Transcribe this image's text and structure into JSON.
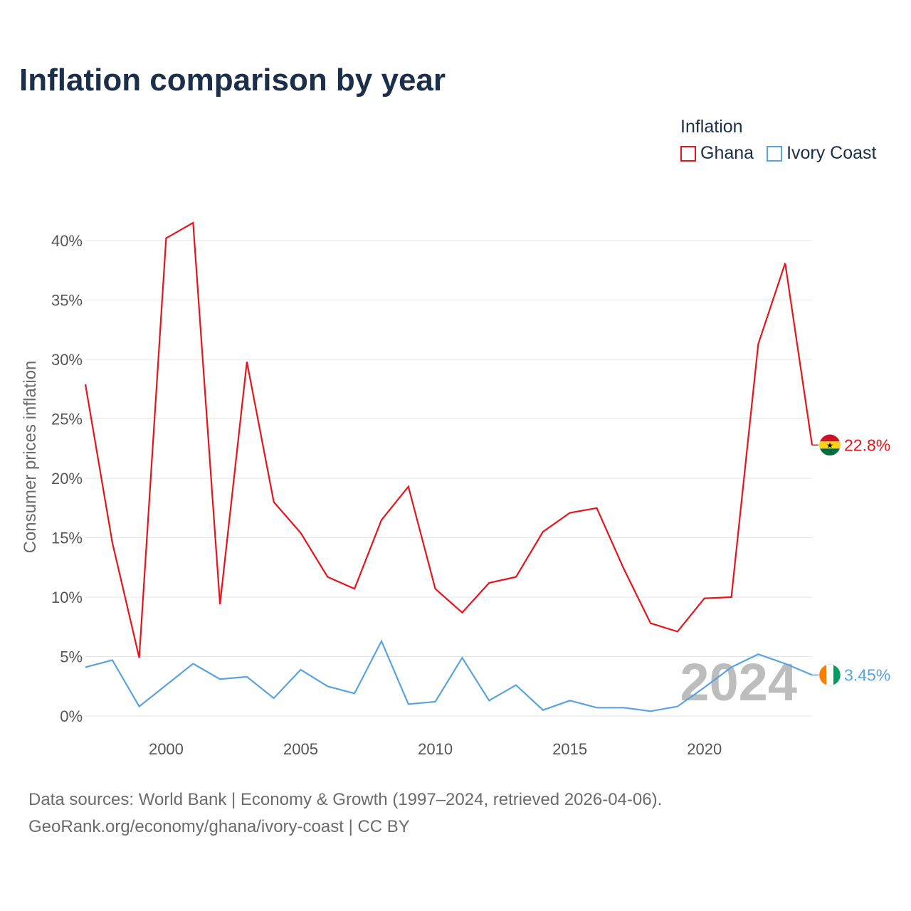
{
  "page": {
    "title": "Inflation comparison by year",
    "footer_line1": "Data sources: World Bank | Economy & Growth (1997–2024, retrieved 2026-04-06).",
    "footer_line2": "GeoRank.org/economy/ghana/ivory-coast | CC BY"
  },
  "legend": {
    "title": "Inflation",
    "items": [
      {
        "label": "Ghana",
        "color": "#e8141c"
      },
      {
        "label": "Ivory Coast",
        "color": "#5aa3e0"
      }
    ]
  },
  "chart_data": {
    "type": "line",
    "title": "Inflation comparison by year",
    "ylabel": "Consumer prices inflation",
    "xlabel": "",
    "year_watermark": "2024",
    "x": [
      1997,
      1998,
      1999,
      2000,
      2001,
      2002,
      2003,
      2004,
      2005,
      2006,
      2007,
      2008,
      2009,
      2010,
      2011,
      2012,
      2013,
      2014,
      2015,
      2016,
      2017,
      2018,
      2019,
      2020,
      2021,
      2022,
      2023,
      2024
    ],
    "xlim": [
      1997,
      2024
    ],
    "ylim": [
      0,
      41.5
    ],
    "xticks": [
      2000,
      2005,
      2010,
      2015,
      2020
    ],
    "xtick_labels": [
      "2000",
      "2005",
      "2010",
      "2015",
      "2020"
    ],
    "yticks": [
      0,
      5,
      10,
      15,
      20,
      25,
      30,
      35,
      40
    ],
    "ytick_labels": [
      "0%",
      "5%",
      "10%",
      "15%",
      "20%",
      "25%",
      "30%",
      "35%",
      "40%"
    ],
    "grid": true,
    "series": [
      {
        "name": "Ghana",
        "color": "#e8141c",
        "end_label": "22.8%",
        "flag_colors": [
          "#ce1126",
          "#fcd116",
          "#006b3f"
        ],
        "values": [
          27.9,
          14.6,
          4.9,
          40.2,
          41.5,
          9.4,
          29.8,
          18.0,
          15.4,
          11.7,
          10.7,
          16.5,
          19.3,
          10.7,
          8.7,
          11.2,
          11.7,
          15.5,
          17.1,
          17.5,
          12.4,
          7.8,
          7.1,
          9.9,
          10.0,
          31.3,
          38.1,
          22.8
        ]
      },
      {
        "name": "Ivory Coast",
        "color": "#5aa3e0",
        "end_label": "3.45%",
        "flag_colors": [
          "#f77f00",
          "#ffffff",
          "#009e60"
        ],
        "values": [
          4.1,
          4.7,
          0.8,
          2.6,
          4.4,
          3.1,
          3.3,
          1.5,
          3.9,
          2.5,
          1.9,
          6.3,
          1.0,
          1.2,
          4.9,
          1.3,
          2.6,
          0.5,
          1.3,
          0.7,
          0.7,
          0.4,
          0.8,
          2.4,
          4.1,
          5.2,
          4.4,
          3.45
        ]
      }
    ]
  }
}
